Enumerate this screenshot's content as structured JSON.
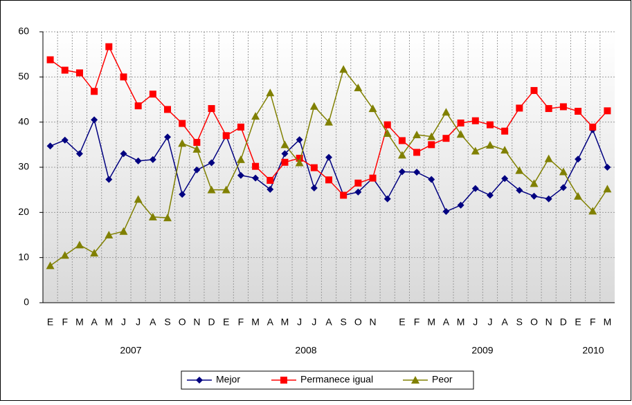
{
  "chart_data": {
    "type": "line",
    "categories": [
      "E",
      "F",
      "M",
      "A",
      "M",
      "J",
      "J",
      "A",
      "S",
      "O",
      "N",
      "D",
      "E",
      "F",
      "M",
      "A",
      "M",
      "J",
      "J",
      "A",
      "S",
      "O",
      "N",
      null,
      "E",
      "F",
      "M",
      "A",
      "M",
      "J",
      "J",
      "A",
      "S",
      "O",
      "N",
      "D",
      "E",
      "F",
      "M"
    ],
    "year_labels": [
      "2007",
      "2008",
      "2009",
      "2010"
    ],
    "series": [
      {
        "name": "Mejor",
        "color": "#000080",
        "marker": "diamond",
        "values": [
          34.7,
          36,
          33,
          40.5,
          27.3,
          33,
          31.4,
          31.7,
          36.7,
          24,
          29.4,
          31,
          37,
          28.2,
          27.6,
          25.1,
          33,
          36.1,
          25.4,
          32.2,
          23.8,
          24.5,
          27.6,
          23,
          29,
          28.9,
          27.3,
          20.2,
          21.6,
          25.3,
          23.8,
          27.5,
          24.9,
          23.6,
          23,
          25.5,
          31.8,
          38.3,
          30
        ]
      },
      {
        "name": "Permanece igual",
        "color": "#ff0000",
        "marker": "square",
        "values": [
          53.8,
          51.5,
          50.9,
          46.8,
          56.7,
          50,
          43.6,
          46.2,
          42.8,
          39.7,
          35.5,
          43,
          37,
          38.9,
          30.2,
          27.1,
          31.1,
          32,
          29.9,
          27.2,
          23.8,
          26.5,
          27.6,
          39.4,
          35.9,
          33.3,
          35,
          36.4,
          39.8,
          40.3,
          39.4,
          38,
          43.1,
          47,
          43,
          43.4,
          42.4,
          38.9,
          42.5
        ]
      },
      {
        "name": "Peor",
        "color": "#808000",
        "marker": "triangle",
        "values": [
          8.2,
          10.5,
          12.8,
          11,
          15,
          15.8,
          22.9,
          19,
          18.8,
          35.3,
          34,
          25,
          25,
          31.7,
          41.3,
          46.5,
          35,
          31,
          43.5,
          40,
          51.7,
          47.6,
          43,
          37.5,
          32.7,
          37.2,
          36.8,
          42.2,
          37.3,
          33.6,
          34.9,
          33.8,
          29.3,
          26.4,
          31.9,
          29,
          23.6,
          20.3,
          25.2
        ]
      }
    ],
    "ylim": [
      0,
      60
    ],
    "yticks": [
      0,
      10,
      20,
      30,
      40,
      50,
      60
    ],
    "grid": true,
    "legend": "bottom"
  }
}
